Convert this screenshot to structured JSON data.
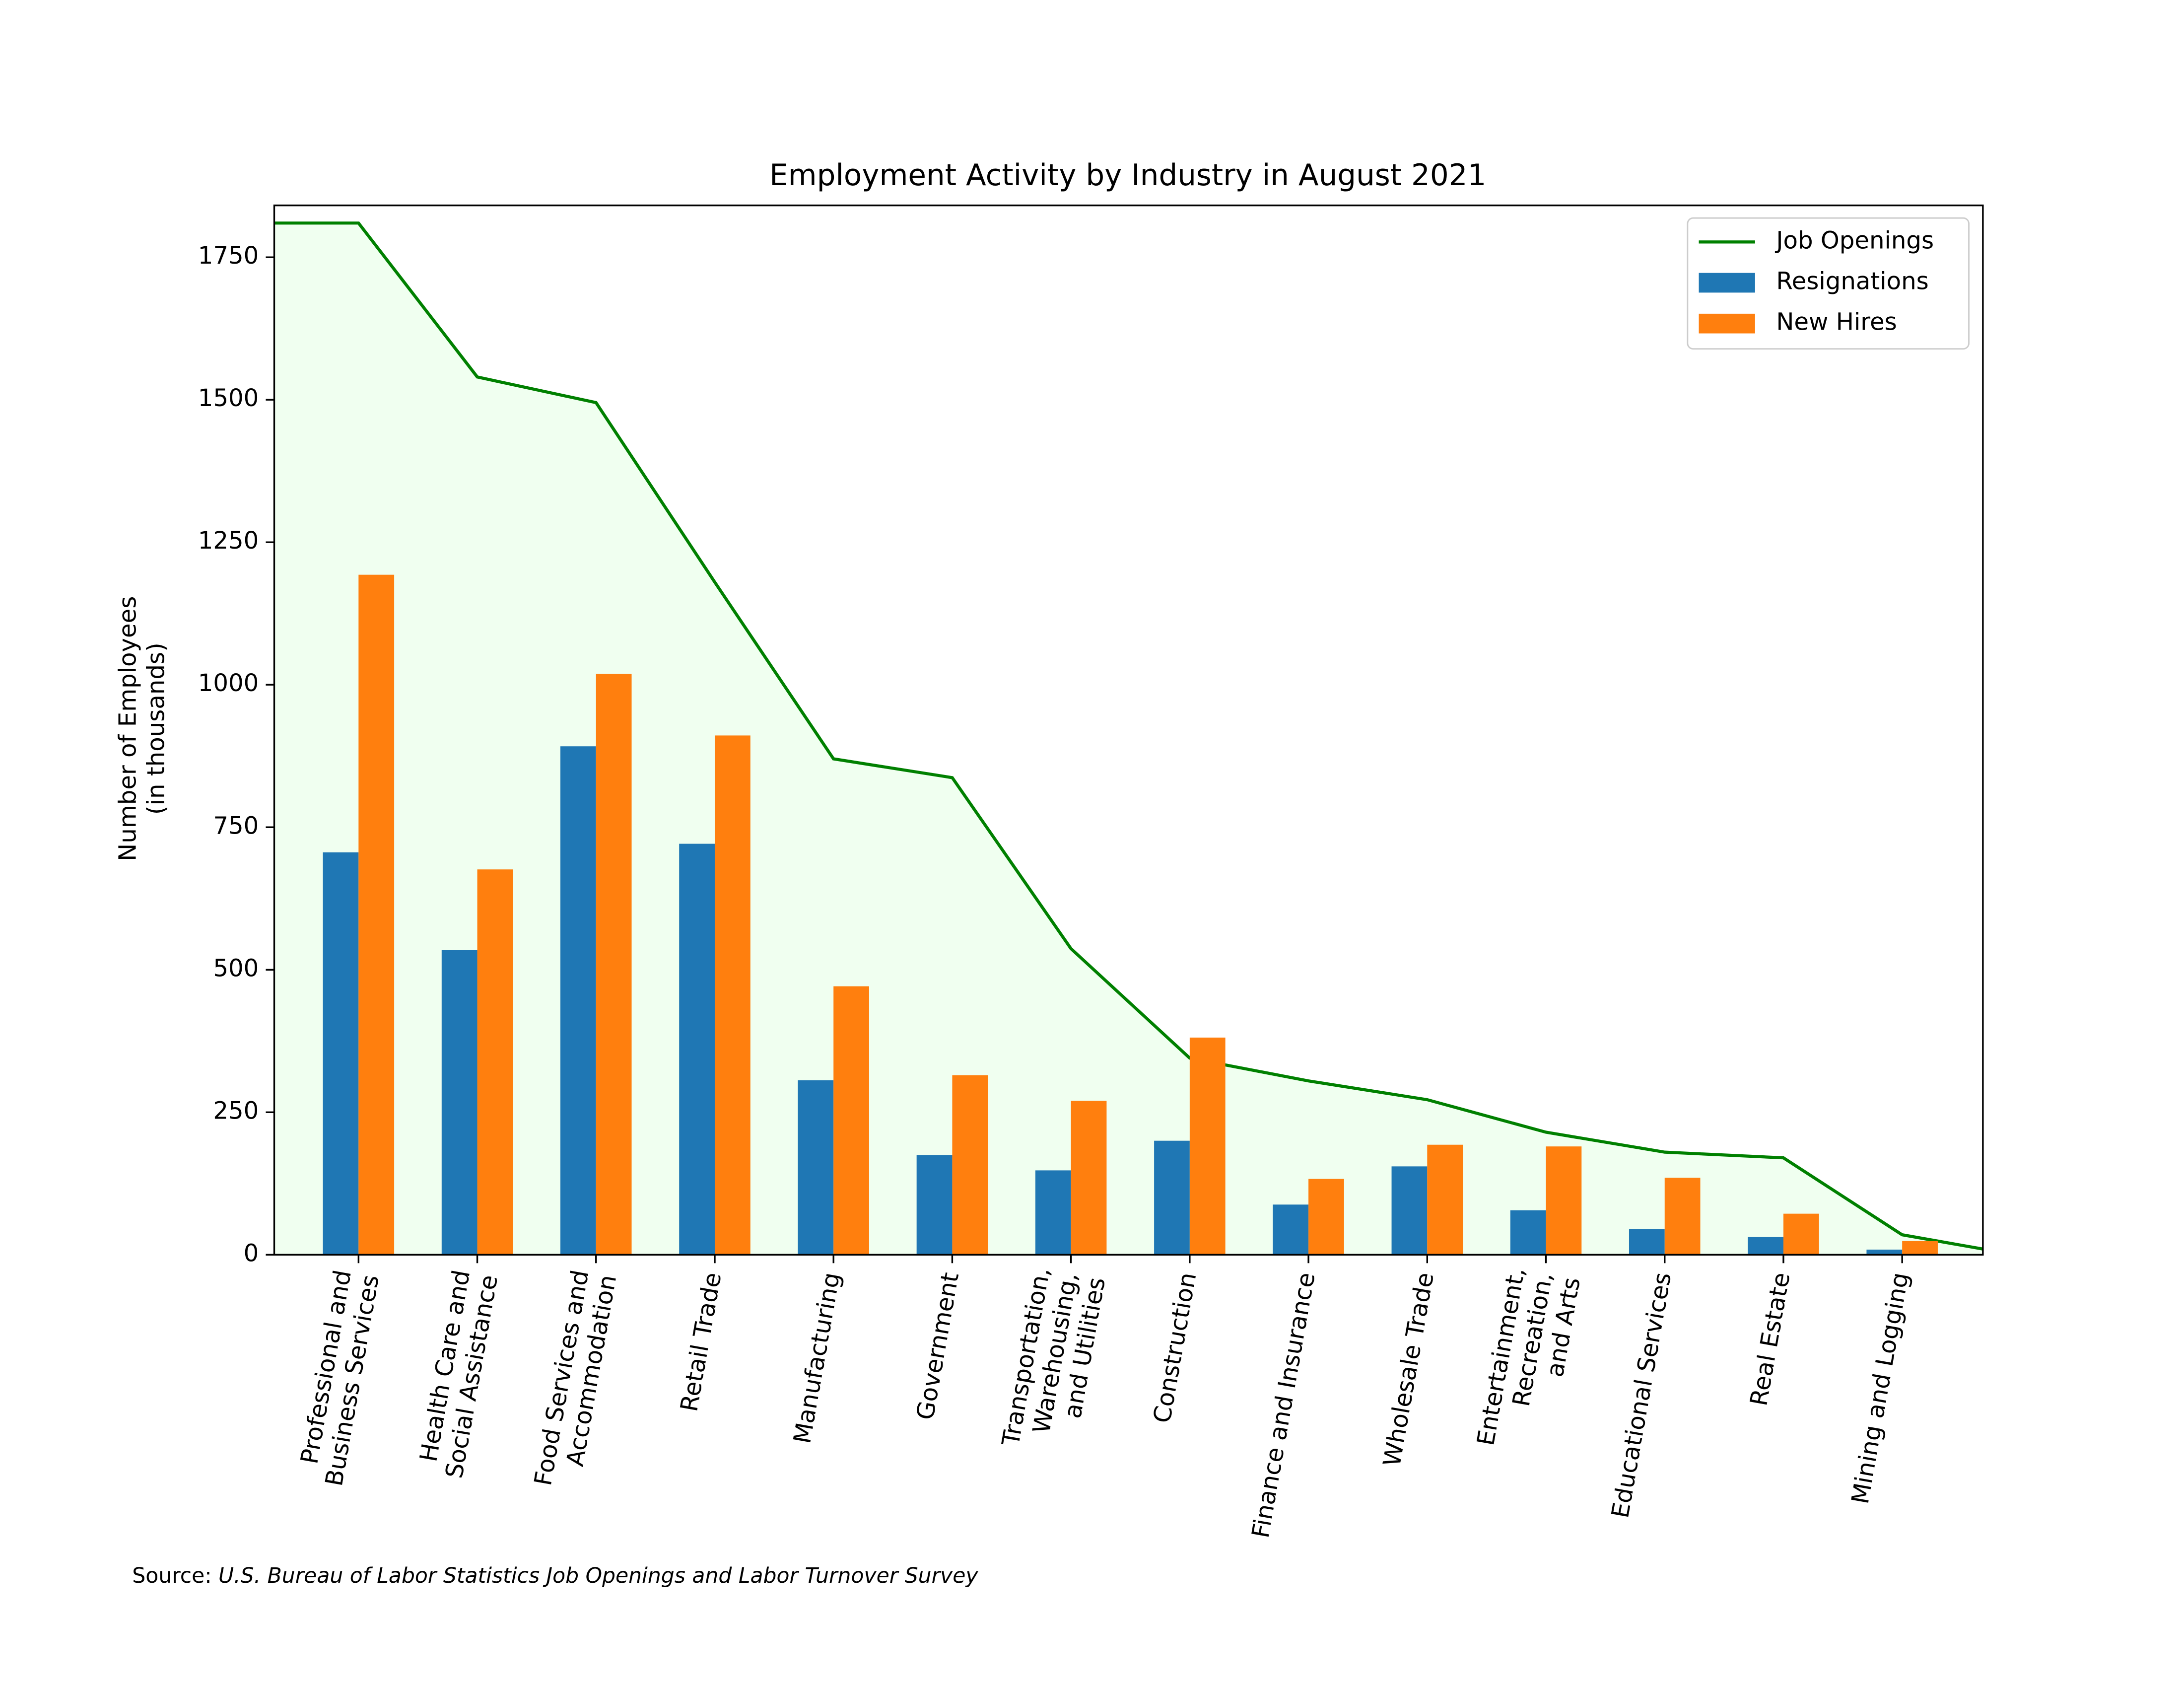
{
  "chart_data": {
    "type": "bar",
    "title": "Employment Activity by Industry in August 2021",
    "y_label": "Number of Employees\n(in thousands)",
    "source_label": "Source:",
    "source": "U.S. Bureau of Labor Statistics Job Openings and Labor Turnover Survey",
    "categories": [
      "Professional and\nBusiness Services",
      "Health Care and\nSocial Assistance",
      "Food Services and\nAccommodation",
      "Retail Trade",
      "Manufacturing",
      "Government",
      "Transportation,\nWarehousing,\nand Utilities",
      "Construction",
      "Finance and Insurance",
      "Wholesale Trade",
      "Entertainment,\nRecreation,\nand Arts",
      "Educational Services",
      "Real Estate",
      "Mining and Logging"
    ],
    "xlim": [
      -0.71,
      13.68
    ],
    "ylim": [
      0,
      1841
    ],
    "yticks": [
      0,
      250,
      500,
      750,
      1000,
      1250,
      1500,
      1750
    ],
    "legend": "upper right",
    "series": [
      {
        "name": "Job Openings",
        "type": "line",
        "color": "#008000",
        "fill_color": "#f0fff0",
        "x": [
          -0.71,
          0,
          1,
          2,
          3,
          4,
          5,
          6,
          7,
          8,
          9,
          10,
          11,
          12,
          13,
          13.68
        ],
        "values": [
          1810,
          1810,
          1540,
          1495,
          1180,
          870,
          837,
          537,
          345,
          305,
          272,
          215,
          180,
          170,
          35,
          10
        ]
      },
      {
        "name": "Resignations",
        "type": "bar",
        "color": "#1f77b4",
        "values": [
          706,
          535,
          892,
          721,
          306,
          175,
          148,
          200,
          88,
          155,
          78,
          45,
          31,
          9
        ]
      },
      {
        "name": "New Hires",
        "type": "bar",
        "color": "#ff7f0e",
        "values": [
          1193,
          676,
          1019,
          911,
          471,
          315,
          270,
          381,
          133,
          193,
          190,
          135,
          72,
          24
        ]
      }
    ]
  }
}
